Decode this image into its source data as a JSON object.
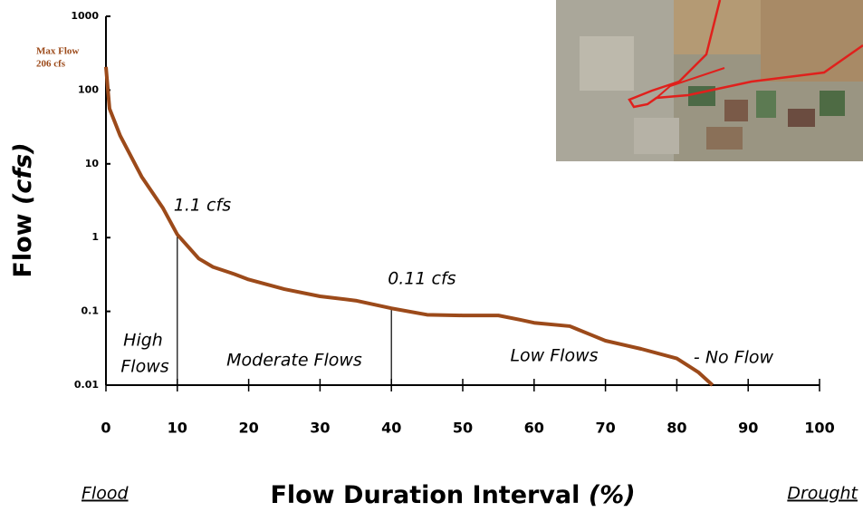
{
  "chart_data": {
    "type": "line",
    "y_label": "Flow",
    "y_label_unit": "(cfs)",
    "x_label": "Flow Duration Interval",
    "x_label_unit": "(%)",
    "left_label": "Flood",
    "right_label": "Drought",
    "max_label": [
      "Max Flow",
      "206 cfs"
    ],
    "zones": [
      [
        "High",
        "Flows"
      ],
      [
        "Moderate Flows"
      ],
      [
        "Low Flows"
      ],
      [
        "- No Flow"
      ]
    ],
    "log_y": true,
    "xlim": [
      0,
      100
    ],
    "xticks": [
      0,
      10,
      20,
      30,
      40,
      50,
      60,
      70,
      80,
      90,
      100
    ],
    "ylim": [
      0.01,
      1000
    ],
    "yticks": [
      1000,
      100,
      10,
      1,
      0.1,
      0.01
    ],
    "markers": [
      {
        "x": 10,
        "value": 1.1,
        "label": "1.1 cfs"
      },
      {
        "x": 40,
        "value": 0.11,
        "label": "0.11 cfs"
      }
    ],
    "series": [
      {
        "color": "#9c4a1a",
        "x": [
          0,
          0.5,
          2,
          5,
          8,
          10,
          13,
          15,
          18,
          20,
          25,
          30,
          35,
          40,
          45,
          50,
          55,
          58,
          60,
          65,
          68,
          70,
          75,
          80,
          83,
          85
        ],
        "values": [
          206,
          56,
          24,
          6.7,
          2.5,
          1.1,
          0.52,
          0.4,
          0.32,
          0.27,
          0.2,
          0.16,
          0.14,
          0.11,
          0.09,
          0.088,
          0.088,
          0.077,
          0.07,
          0.063,
          0.048,
          0.04,
          0.031,
          0.023,
          0.015,
          0.01
        ]
      }
    ]
  }
}
